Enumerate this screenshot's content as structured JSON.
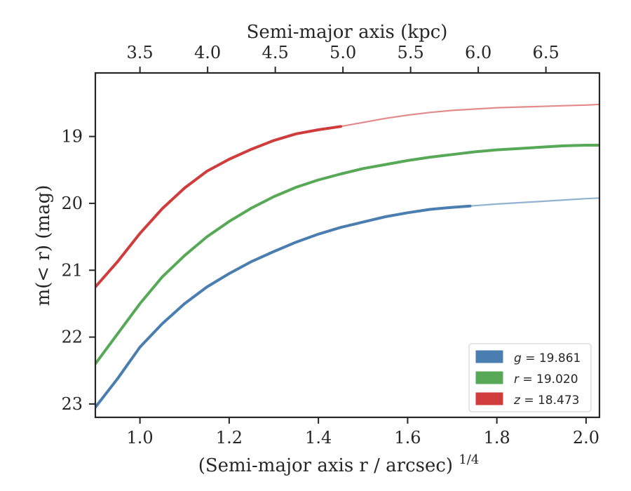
{
  "chart_data": {
    "type": "line",
    "xlabel_top": "Semi-major axis (kpc)",
    "xlabel_bottom": "(Semi-major axis r / arcsec)",
    "xlabel_bottom_exponent": "1/4",
    "ylabel": "m(< r) (mag)",
    "xlim": [
      0.9,
      2.03
    ],
    "ylim": [
      23.2,
      18.05
    ],
    "y_inverted": true,
    "x_ticks": [
      "1.0",
      "1.2",
      "1.4",
      "1.6",
      "1.8",
      "2.0"
    ],
    "y_ticks": [
      "19",
      "20",
      "21",
      "22",
      "23"
    ],
    "top_ticks": [
      "3.5",
      "4.0",
      "4.5",
      "5.0",
      "5.5",
      "6.0",
      "6.5"
    ],
    "top_axis_kpc_per_x_unit": [
      [
        3.5,
        1.0
      ],
      [
        6.5,
        1.91
      ]
    ],
    "legend": {
      "position": "lower-right",
      "entries": [
        {
          "label": "g = 19.861",
          "color": "#4a7eb0"
        },
        {
          "label": "r = 19.020",
          "color": "#57a957"
        },
        {
          "label": "z = 18.473",
          "color": "#d03c3c"
        }
      ]
    },
    "series": [
      {
        "name": "g",
        "color": "#4a7eb0",
        "solid_until_x": 1.74,
        "x": [
          0.9,
          0.95,
          1.0,
          1.05,
          1.1,
          1.15,
          1.2,
          1.25,
          1.3,
          1.35,
          1.4,
          1.45,
          1.5,
          1.55,
          1.6,
          1.65,
          1.7,
          1.74,
          1.8,
          1.85,
          1.9,
          1.95,
          2.0,
          2.03
        ],
        "y": [
          23.05,
          22.62,
          22.15,
          21.8,
          21.5,
          21.25,
          21.05,
          20.87,
          20.72,
          20.58,
          20.46,
          20.36,
          20.28,
          20.2,
          20.14,
          20.09,
          20.06,
          20.04,
          20.01,
          19.99,
          19.97,
          19.95,
          19.93,
          19.92
        ]
      },
      {
        "name": "r",
        "color": "#57a957",
        "solid_until_x": 2.03,
        "x": [
          0.9,
          0.95,
          1.0,
          1.05,
          1.1,
          1.15,
          1.2,
          1.25,
          1.3,
          1.35,
          1.4,
          1.45,
          1.5,
          1.55,
          1.6,
          1.65,
          1.7,
          1.75,
          1.8,
          1.85,
          1.9,
          1.95,
          2.0,
          2.03
        ],
        "y": [
          22.4,
          21.95,
          21.5,
          21.1,
          20.78,
          20.5,
          20.27,
          20.07,
          19.9,
          19.76,
          19.65,
          19.56,
          19.48,
          19.42,
          19.36,
          19.31,
          19.27,
          19.23,
          19.2,
          19.18,
          19.16,
          19.14,
          19.13,
          19.13
        ]
      },
      {
        "name": "z",
        "color": "#d03c3c",
        "solid_until_x": 1.45,
        "x": [
          0.9,
          0.95,
          1.0,
          1.05,
          1.1,
          1.15,
          1.2,
          1.25,
          1.3,
          1.35,
          1.4,
          1.45,
          1.5,
          1.55,
          1.6,
          1.65,
          1.7,
          1.75,
          1.8,
          1.85,
          1.9,
          1.95,
          2.0,
          2.03
        ],
        "y": [
          21.25,
          20.87,
          20.45,
          20.08,
          19.77,
          19.52,
          19.34,
          19.19,
          19.06,
          18.96,
          18.9,
          18.85,
          18.79,
          18.73,
          18.68,
          18.64,
          18.61,
          18.59,
          18.57,
          18.56,
          18.55,
          18.54,
          18.53,
          18.52
        ]
      }
    ]
  }
}
